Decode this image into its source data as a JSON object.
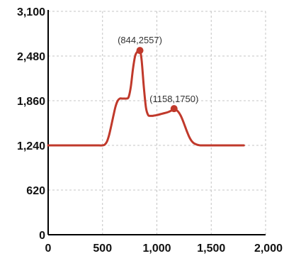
{
  "colors": {
    "line": "#c0392b",
    "point": "#c0392b",
    "grid": "#c4c4c4",
    "axis": "#000000"
  },
  "chart_data": {
    "type": "line",
    "title": "",
    "xlabel": "",
    "ylabel": "",
    "xlim": [
      0,
      2000
    ],
    "ylim": [
      0,
      3100
    ],
    "grid": true,
    "xticks": [
      0,
      500,
      1000,
      1500,
      2000
    ],
    "yticks": [
      0,
      620,
      1240,
      1860,
      2480,
      3100
    ],
    "xtick_labels": [
      "0",
      "500",
      "1,000",
      "1,500",
      "2,000"
    ],
    "ytick_labels": [
      "0",
      "620",
      "1,240",
      "1,860",
      "2,480",
      "3,100"
    ],
    "series": [
      {
        "x": [
          0,
          100,
          200,
          300,
          400,
          450,
          500,
          520,
          540,
          560,
          580,
          600,
          620,
          640,
          660,
          680,
          700,
          720,
          740,
          760,
          780,
          800,
          820,
          844,
          860,
          880,
          900,
          920,
          940,
          960,
          980,
          1000,
          1050,
          1100,
          1130,
          1158,
          1180,
          1200,
          1220,
          1240,
          1260,
          1280,
          1300,
          1320,
          1340,
          1360,
          1380,
          1400,
          1450,
          1500,
          1600,
          1700,
          1800
        ],
        "y": [
          1240,
          1240,
          1240,
          1240,
          1240,
          1240,
          1240,
          1250,
          1290,
          1380,
          1510,
          1650,
          1780,
          1860,
          1890,
          1890,
          1890,
          1890,
          1910,
          2050,
          2300,
          2480,
          2540,
          2557,
          2420,
          2050,
          1760,
          1660,
          1650,
          1650,
          1655,
          1660,
          1680,
          1700,
          1720,
          1750,
          1730,
          1700,
          1650,
          1580,
          1500,
          1420,
          1350,
          1300,
          1270,
          1255,
          1245,
          1240,
          1240,
          1240,
          1240,
          1240,
          1240
        ]
      }
    ],
    "annotations": [
      {
        "x": 844,
        "y": 2557,
        "label": "(844,2557)"
      },
      {
        "x": 1158,
        "y": 1750,
        "label": "(1158,1750)"
      }
    ]
  }
}
